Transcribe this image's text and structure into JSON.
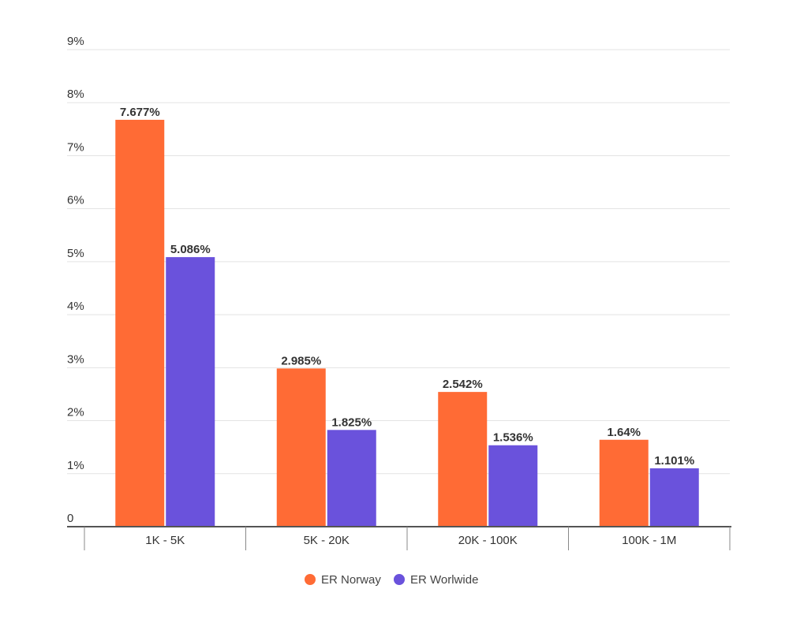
{
  "chart_data": {
    "type": "bar",
    "categories": [
      "1K - 5K",
      "5K - 20K",
      "20K - 100K",
      "100K - 1M"
    ],
    "series": [
      {
        "name": "ER Norway",
        "color": "#ff6b35",
        "values": [
          7.677,
          2.985,
          2.542,
          1.64
        ],
        "labels": [
          "7.677%",
          "2.985%",
          "2.542%",
          "1.64%"
        ]
      },
      {
        "name": "ER Worlwide",
        "color": "#6a52dc",
        "values": [
          5.086,
          1.825,
          1.536,
          1.101
        ],
        "labels": [
          "5.086%",
          "1.825%",
          "1.536%",
          "1.101%"
        ]
      }
    ],
    "y_ticks": [
      {
        "value": 0,
        "label": "0"
      },
      {
        "value": 1,
        "label": "1%"
      },
      {
        "value": 2,
        "label": "2%"
      },
      {
        "value": 3,
        "label": "3%"
      },
      {
        "value": 4,
        "label": "4%"
      },
      {
        "value": 5,
        "label": "5%"
      },
      {
        "value": 6,
        "label": "6%"
      },
      {
        "value": 7,
        "label": "7%"
      },
      {
        "value": 8,
        "label": "8%"
      },
      {
        "value": 9,
        "label": "9%"
      }
    ],
    "ylim": [
      0,
      9
    ],
    "grid": true,
    "legend_position": "bottom-center",
    "title": "",
    "xlabel": "",
    "ylabel": ""
  }
}
